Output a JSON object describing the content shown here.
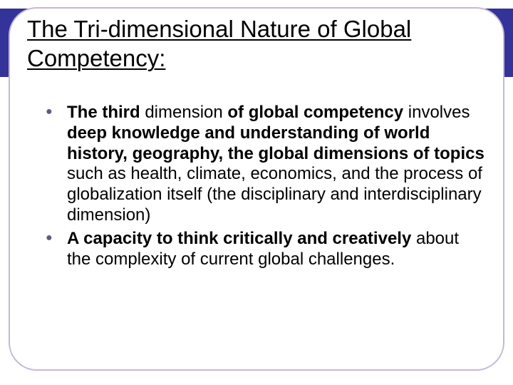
{
  "colors": {
    "border": "#c6b8d6",
    "band": "#33339a",
    "title": "#000000",
    "body": "#000000",
    "bullet": "#5b5b82",
    "background": "#ffffff"
  },
  "typography": {
    "title_fontsize": 33,
    "body_fontsize": 24,
    "font_family": "Arial"
  },
  "title": "The Tri-dimensional Nature of Global Competency:",
  "bullets": [
    {
      "runs": [
        {
          "text": "The third ",
          "bold": true
        },
        {
          "text": "dimension ",
          "bold": false
        },
        {
          "text": "of global competency ",
          "bold": true
        },
        {
          "text": "involves ",
          "bold": false
        },
        {
          "text": "deep knowledge and understanding of world history, geography, the global dimensions of topics ",
          "bold": true
        },
        {
          "text": "such as health, climate, economics, and the process of globalization itself (the disciplinary and interdisciplinary dimension)",
          "bold": false
        }
      ]
    },
    {
      "runs": [
        {
          "text": "A capacity to think critically and creatively ",
          "bold": true
        },
        {
          "text": "about the complexity of current global challenges.",
          "bold": false
        }
      ]
    }
  ]
}
